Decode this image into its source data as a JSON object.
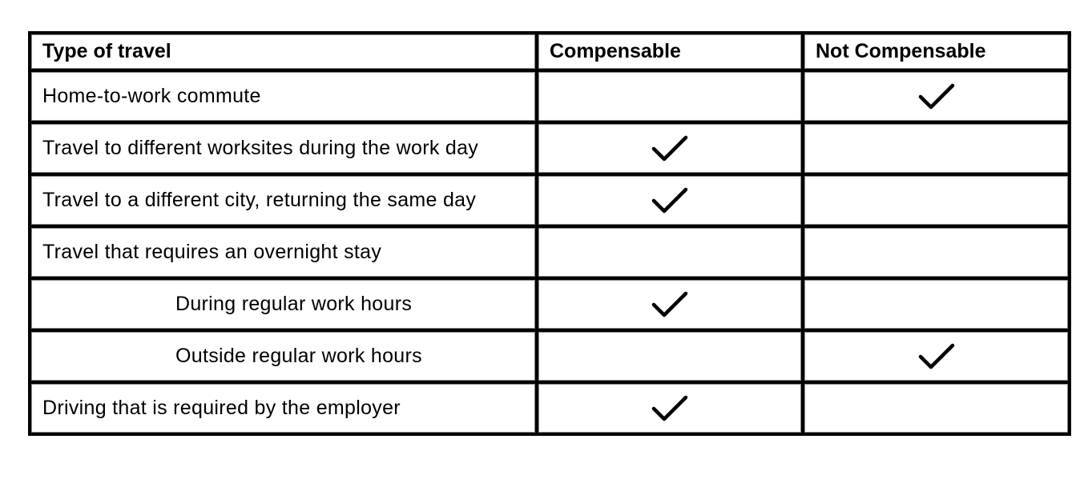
{
  "headers": [
    "Type of travel",
    "Compensable",
    "Not Compensable"
  ],
  "rows": [
    {
      "label": "Home-to-work commute",
      "indent": false,
      "compensable": false,
      "not_compensable": true
    },
    {
      "label": "Travel to different worksites during the work day",
      "indent": false,
      "compensable": true,
      "not_compensable": false
    },
    {
      "label": "Travel to a different city, returning the same day",
      "indent": false,
      "compensable": true,
      "not_compensable": false
    },
    {
      "label": "Travel that requires an overnight stay",
      "indent": false,
      "compensable": false,
      "not_compensable": false
    },
    {
      "label": "During regular work hours",
      "indent": true,
      "compensable": true,
      "not_compensable": false
    },
    {
      "label": "Outside regular work hours",
      "indent": true,
      "compensable": false,
      "not_compensable": true
    },
    {
      "label": "Driving that is required by the employer",
      "indent": false,
      "compensable": true,
      "not_compensable": false
    }
  ],
  "icons": {
    "mark": "checkmark-icon"
  }
}
